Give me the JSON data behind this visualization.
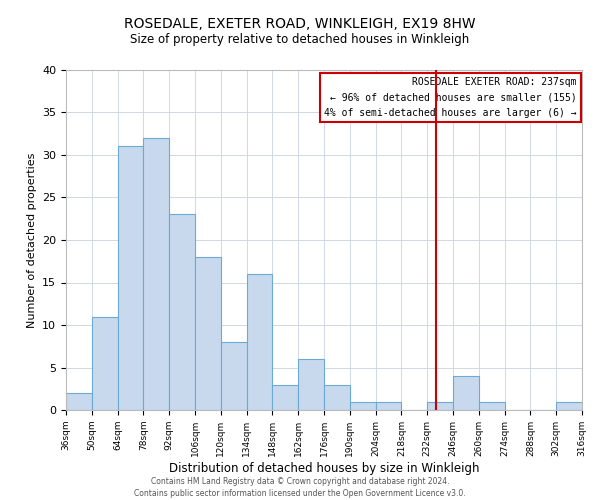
{
  "title": "ROSEDALE, EXETER ROAD, WINKLEIGH, EX19 8HW",
  "subtitle": "Size of property relative to detached houses in Winkleigh",
  "xlabel": "Distribution of detached houses by size in Winkleigh",
  "ylabel": "Number of detached properties",
  "bar_edges": [
    36,
    50,
    64,
    78,
    92,
    106,
    120,
    134,
    148,
    162,
    176,
    190,
    204,
    218,
    232,
    246,
    260,
    274,
    288,
    302,
    316
  ],
  "bar_heights": [
    2,
    11,
    31,
    32,
    23,
    18,
    8,
    16,
    3,
    6,
    3,
    1,
    1,
    0,
    1,
    4,
    1,
    0,
    0,
    1
  ],
  "bar_color": "#c8d9ee",
  "bar_edge_color": "#6aaad4",
  "subject_value": 237,
  "vline_color": "#cc0000",
  "ylim": [
    0,
    40
  ],
  "yticks": [
    0,
    5,
    10,
    15,
    20,
    25,
    30,
    35,
    40
  ],
  "grid_color": "#d0d8e4",
  "annotation_box_edge": "#cc0000",
  "annotation_lines": [
    "ROSEDALE EXETER ROAD: 237sqm",
    "← 96% of detached houses are smaller (155)",
    "4% of semi-detached houses are larger (6) →"
  ],
  "footnote1": "Contains HM Land Registry data © Crown copyright and database right 2024.",
  "footnote2": "Contains public sector information licensed under the Open Government Licence v3.0.",
  "tick_labels": [
    "36sqm",
    "50sqm",
    "64sqm",
    "78sqm",
    "92sqm",
    "106sqm",
    "120sqm",
    "134sqm",
    "148sqm",
    "162sqm",
    "176sqm",
    "190sqm",
    "204sqm",
    "218sqm",
    "232sqm",
    "246sqm",
    "260sqm",
    "274sqm",
    "288sqm",
    "302sqm",
    "316sqm"
  ]
}
